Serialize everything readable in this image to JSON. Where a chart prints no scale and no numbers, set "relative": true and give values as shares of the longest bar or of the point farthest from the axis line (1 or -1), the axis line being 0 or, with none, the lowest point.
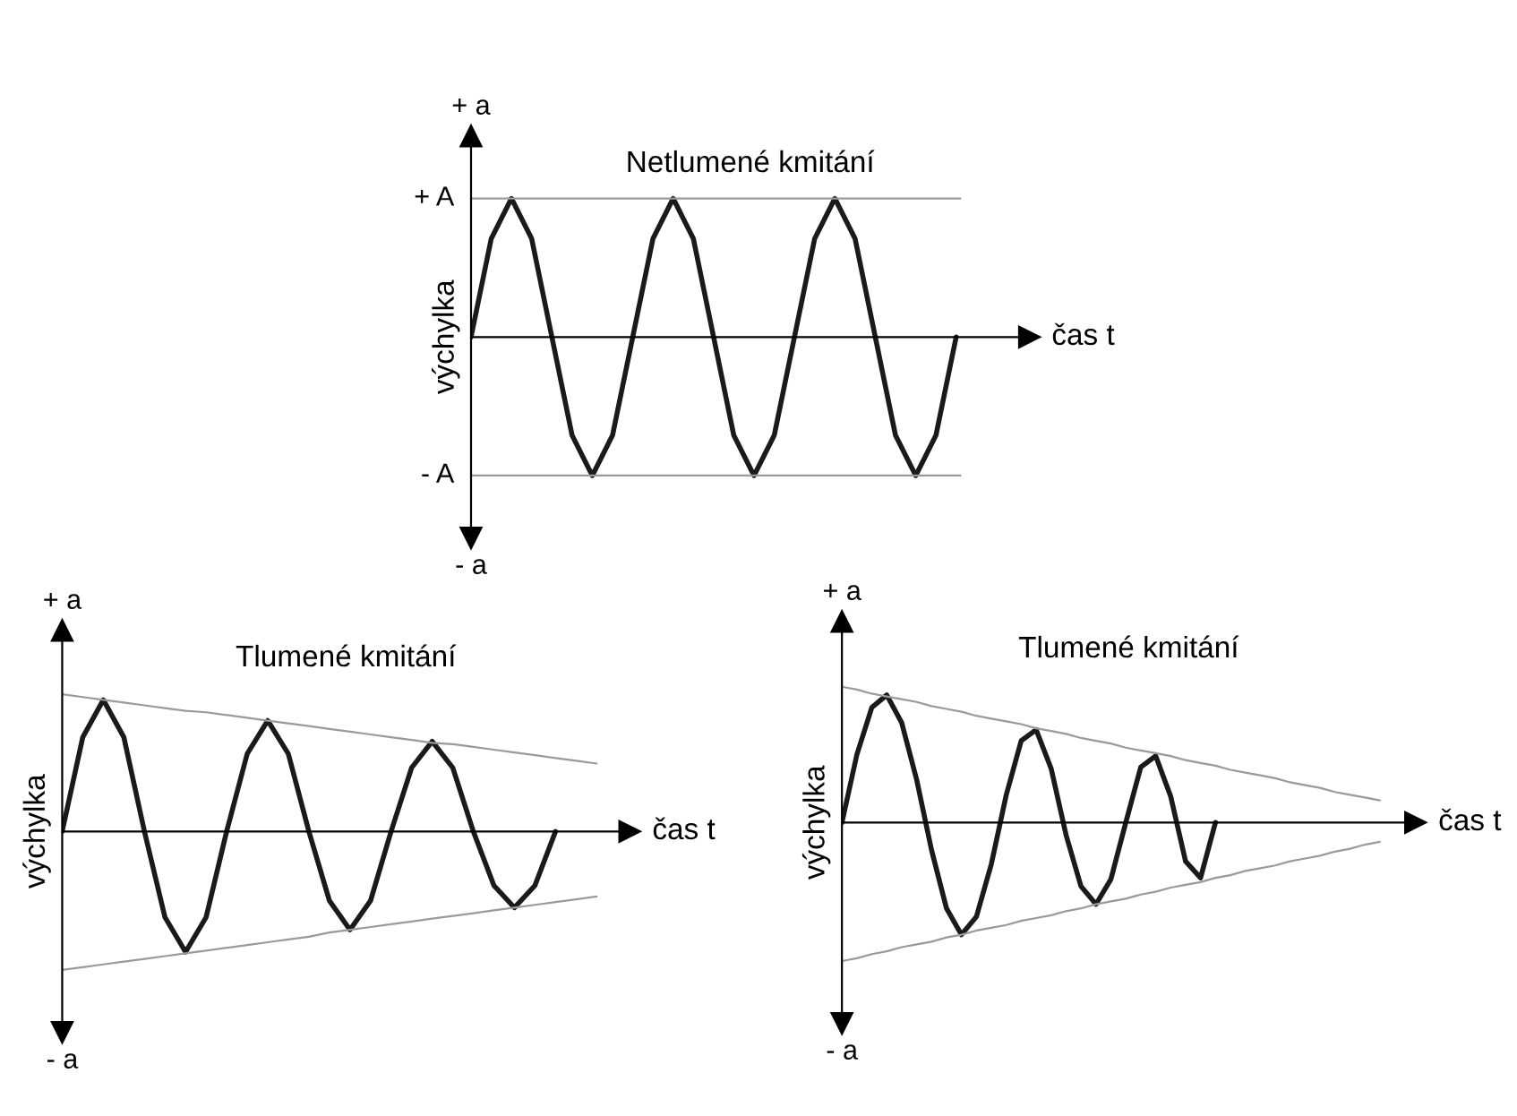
{
  "chart_data": [
    {
      "type": "line",
      "title": "Netlumené kmitání",
      "xlabel": "čas t",
      "ylabel": "výchylka",
      "relative": true,
      "annotations": [
        "+ a",
        "- a"
      ],
      "categories": [
        null,
        null,
        null,
        null,
        null,
        null,
        null,
        null,
        null,
        null,
        null,
        null,
        null,
        null,
        null,
        null,
        null,
        null,
        null,
        null,
        null,
        null,
        null,
        null,
        null
      ],
      "series": [
        {
          "color": "#1a1a1a",
          "values": [
            0,
            0.71,
            1,
            0.71,
            0,
            -0.71,
            -1,
            -0.71,
            0,
            0.71,
            1,
            0.71,
            0,
            -0.71,
            -1,
            -0.71,
            0,
            0.71,
            1,
            0.71,
            0,
            -0.71,
            -1,
            -0.71,
            0
          ]
        }
      ],
      "ref_lines": [
        {
          "axis": "y",
          "value": 1,
          "label": "+ A",
          "color": "#9a9a9a"
        },
        {
          "axis": "y",
          "value": -1,
          "label": "- A",
          "color": "#9a9a9a"
        }
      ]
    },
    {
      "type": "line",
      "title": "Tlumené kmitání",
      "xlabel": "čas t",
      "ylabel": "výchylka",
      "relative": true,
      "annotations": [
        "+ a",
        "- a"
      ],
      "categories": [
        null,
        null,
        null,
        null,
        null,
        null,
        null,
        null,
        null,
        null,
        null,
        null,
        null,
        null,
        null,
        null,
        null,
        null,
        null,
        null,
        null,
        null,
        null,
        null,
        null,
        null,
        null
      ],
      "series": [
        {
          "color": "#1a1a1a",
          "values": [
            0,
            0.68,
            0.95,
            0.68,
            0,
            -0.62,
            -0.87,
            -0.62,
            0,
            0.56,
            0.8,
            0.56,
            0,
            -0.5,
            -0.71,
            -0.5,
            0,
            0.46,
            0.65,
            0.46,
            0,
            -0.39,
            -0.55,
            -0.39,
            0,
            null,
            null
          ]
        },
        {
          "color": "#9a9a9a",
          "values": [
            0.99,
            0.97,
            0.95,
            0.93,
            0.91,
            0.89,
            0.87,
            0.86,
            0.84,
            0.82,
            0.8,
            0.78,
            0.76,
            0.74,
            0.72,
            0.7,
            0.68,
            0.66,
            0.64,
            0.63,
            0.61,
            0.59,
            0.57,
            0.55,
            0.53,
            0.51,
            0.49
          ]
        },
        {
          "color": "#9a9a9a",
          "values": [
            -1,
            -0.98,
            -0.96,
            -0.94,
            -0.92,
            -0.9,
            -0.88,
            -0.86,
            -0.84,
            -0.82,
            -0.8,
            -0.78,
            -0.76,
            -0.73,
            -0.71,
            -0.69,
            -0.67,
            -0.65,
            -0.63,
            -0.61,
            -0.59,
            -0.57,
            -0.55,
            -0.53,
            -0.51,
            -0.49,
            -0.47
          ]
        }
      ]
    },
    {
      "type": "line",
      "title": "Tlumené kmitání",
      "xlabel": "čas t",
      "ylabel": "výchylka",
      "relative": true,
      "annotations": [
        "+ a",
        "- a"
      ],
      "categories": [
        null,
        null,
        null,
        null,
        null,
        null,
        null,
        null,
        null,
        null,
        null,
        null,
        null,
        null,
        null,
        null,
        null,
        null,
        null,
        null,
        null,
        null,
        null,
        null,
        null,
        null,
        null,
        null,
        null,
        null,
        null,
        null,
        null,
        null,
        null,
        null,
        null
      ],
      "series": [
        {
          "color": "#1a1a1a",
          "values": [
            0,
            0.49,
            0.83,
            0.92,
            0.72,
            0.31,
            -0.2,
            -0.62,
            -0.81,
            -0.68,
            -0.3,
            0.2,
            0.59,
            0.67,
            0.39,
            -0.09,
            -0.46,
            -0.59,
            -0.41,
            0,
            0.4,
            0.48,
            0.19,
            -0.28,
            -0.4,
            0,
            null,
            null,
            null,
            null,
            null,
            null,
            null,
            null,
            null,
            null,
            null
          ]
        },
        {
          "color": "#9a9a9a",
          "values": [
            0.98,
            0.96,
            0.93,
            0.91,
            0.89,
            0.87,
            0.84,
            0.82,
            0.8,
            0.77,
            0.75,
            0.73,
            0.71,
            0.68,
            0.66,
            0.64,
            0.61,
            0.59,
            0.57,
            0.54,
            0.52,
            0.5,
            0.48,
            0.45,
            0.43,
            0.41,
            0.38,
            0.36,
            0.34,
            0.32,
            0.29,
            0.27,
            0.25,
            0.22,
            0.2,
            0.18,
            0.16
          ]
        },
        {
          "color": "#9a9a9a",
          "values": [
            -1,
            -0.98,
            -0.95,
            -0.93,
            -0.9,
            -0.88,
            -0.86,
            -0.83,
            -0.81,
            -0.78,
            -0.76,
            -0.74,
            -0.71,
            -0.69,
            -0.67,
            -0.64,
            -0.62,
            -0.59,
            -0.57,
            -0.55,
            -0.52,
            -0.5,
            -0.47,
            -0.45,
            -0.43,
            -0.4,
            -0.38,
            -0.35,
            -0.33,
            -0.31,
            -0.28,
            -0.26,
            -0.24,
            -0.21,
            -0.19,
            -0.16,
            -0.14
          ]
        }
      ]
    }
  ]
}
